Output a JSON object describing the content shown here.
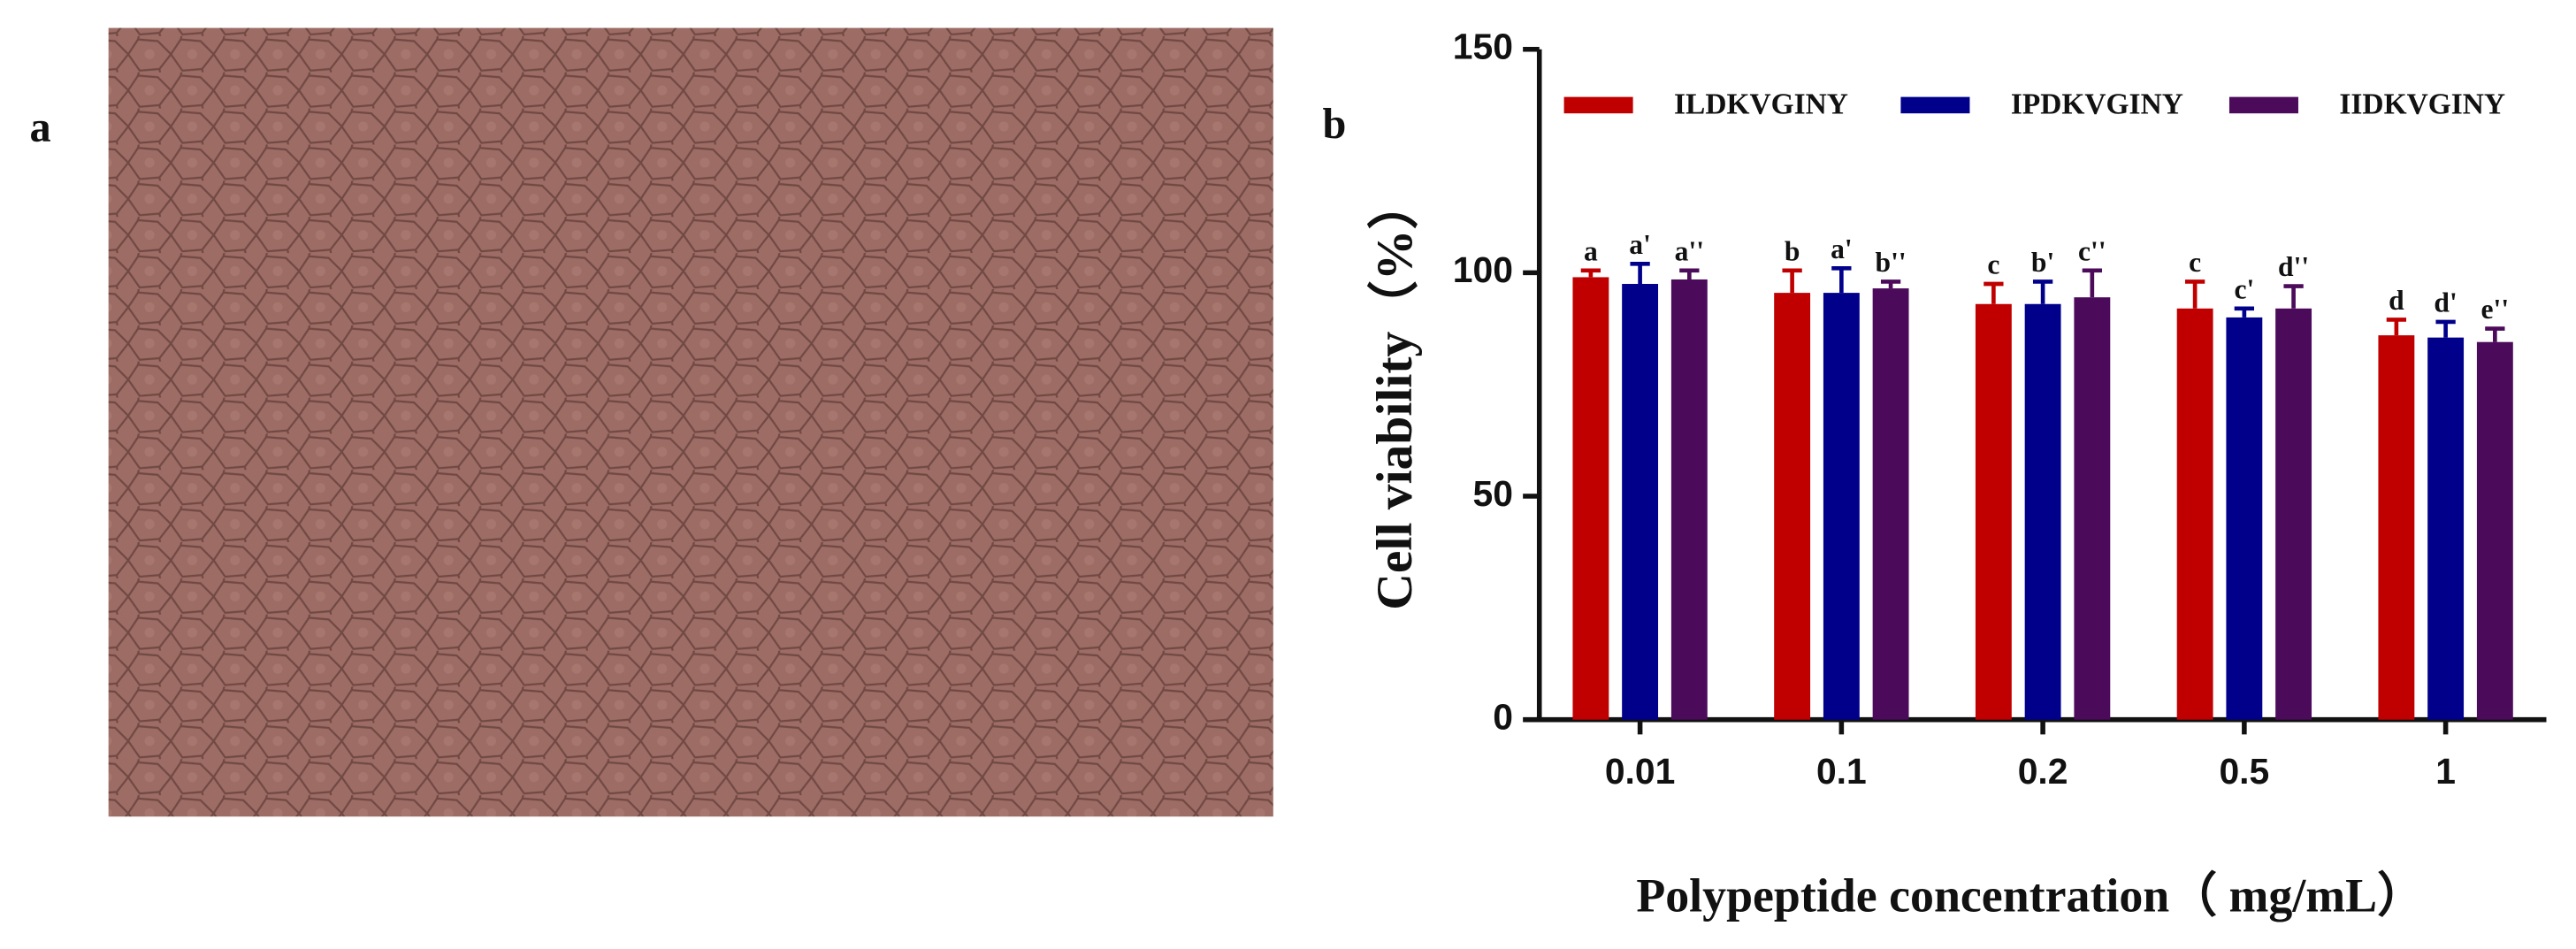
{
  "image_panel": {
    "label": "a"
  },
  "chart_data": {
    "type": "bar",
    "panel_label": "b",
    "y_label": "Cell viability（%）",
    "x_label": "Polypeptide concentration（ mg/mL）",
    "categories": [
      "0.01",
      "0.1",
      "0.2",
      "0.5",
      "1"
    ],
    "series": [
      {
        "name": "ILDKVGINY",
        "color": "#c00000",
        "values": [
          99,
          95.5,
          93,
          92,
          86
        ],
        "errors": [
          1.5,
          5,
          4.5,
          6,
          3.5
        ],
        "labels": [
          "a",
          "b",
          "c",
          "c",
          "d"
        ]
      },
      {
        "name": "IPDKVGINY",
        "color": "#00008b",
        "values": [
          97.5,
          95.5,
          93,
          90,
          85.5
        ],
        "errors": [
          4.5,
          5.5,
          5,
          2,
          3.5
        ],
        "labels": [
          "a'",
          "a'",
          "b'",
          "c'",
          "d'"
        ]
      },
      {
        "name": "IIDKVGINY",
        "color": "#4b0a5a",
        "values": [
          98.5,
          96.5,
          94.5,
          92,
          84.5
        ],
        "errors": [
          2,
          1.5,
          6,
          5,
          3
        ],
        "labels": [
          "a''",
          "b''",
          "c''",
          "d''",
          "e''"
        ]
      }
    ],
    "ylim": [
      0,
      150
    ],
    "yticks": [
      0,
      50,
      100,
      150
    ],
    "legend": "top"
  }
}
